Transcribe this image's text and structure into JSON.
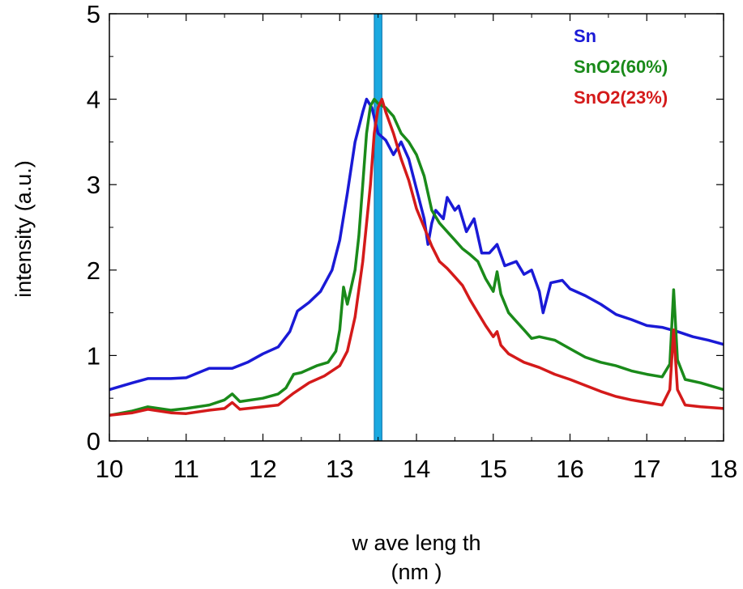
{
  "chart_data": {
    "type": "line",
    "xlabel": "wavelength (nm)",
    "xlabel_lines": [
      "w ave leng th",
      "(nm )"
    ],
    "ylabel": "intensity (a.u.)",
    "xlim": [
      10,
      18
    ],
    "ylim": [
      0,
      5
    ],
    "x_ticks": [
      10,
      11,
      12,
      13,
      14,
      15,
      16,
      17,
      18
    ],
    "y_ticks": [
      0,
      1,
      2,
      3,
      4,
      5
    ],
    "grid": false,
    "legend_position": "top-right",
    "highlight_band": {
      "x_start": 13.45,
      "x_end": 13.55,
      "color": "#1ba9e0"
    },
    "series": [
      {
        "name": "Sn",
        "color": "#1a1ad6",
        "points": [
          [
            10.0,
            0.6
          ],
          [
            10.3,
            0.68
          ],
          [
            10.5,
            0.73
          ],
          [
            10.8,
            0.73
          ],
          [
            11.0,
            0.74
          ],
          [
            11.3,
            0.85
          ],
          [
            11.6,
            0.85
          ],
          [
            11.8,
            0.92
          ],
          [
            12.0,
            1.02
          ],
          [
            12.2,
            1.1
          ],
          [
            12.35,
            1.28
          ],
          [
            12.45,
            1.52
          ],
          [
            12.6,
            1.62
          ],
          [
            12.75,
            1.75
          ],
          [
            12.9,
            2.0
          ],
          [
            13.0,
            2.35
          ],
          [
            13.1,
            2.9
          ],
          [
            13.2,
            3.5
          ],
          [
            13.3,
            3.85
          ],
          [
            13.35,
            4.0
          ],
          [
            13.42,
            3.9
          ],
          [
            13.5,
            3.6
          ],
          [
            13.6,
            3.52
          ],
          [
            13.7,
            3.35
          ],
          [
            13.8,
            3.5
          ],
          [
            13.9,
            3.3
          ],
          [
            14.0,
            2.95
          ],
          [
            14.1,
            2.6
          ],
          [
            14.15,
            2.3
          ],
          [
            14.2,
            2.55
          ],
          [
            14.25,
            2.7
          ],
          [
            14.35,
            2.6
          ],
          [
            14.4,
            2.85
          ],
          [
            14.5,
            2.7
          ],
          [
            14.55,
            2.75
          ],
          [
            14.65,
            2.45
          ],
          [
            14.75,
            2.6
          ],
          [
            14.85,
            2.2
          ],
          [
            14.95,
            2.2
          ],
          [
            15.05,
            2.3
          ],
          [
            15.15,
            2.05
          ],
          [
            15.3,
            2.1
          ],
          [
            15.4,
            1.95
          ],
          [
            15.5,
            2.0
          ],
          [
            15.6,
            1.75
          ],
          [
            15.65,
            1.5
          ],
          [
            15.75,
            1.85
          ],
          [
            15.9,
            1.88
          ],
          [
            16.0,
            1.78
          ],
          [
            16.2,
            1.7
          ],
          [
            16.4,
            1.6
          ],
          [
            16.6,
            1.48
          ],
          [
            16.8,
            1.42
          ],
          [
            17.0,
            1.35
          ],
          [
            17.2,
            1.33
          ],
          [
            17.4,
            1.28
          ],
          [
            17.6,
            1.22
          ],
          [
            17.8,
            1.18
          ],
          [
            18.0,
            1.13
          ]
        ]
      },
      {
        "name": "SnO2(60%)",
        "color": "#1a8a1a",
        "points": [
          [
            10.0,
            0.3
          ],
          [
            10.3,
            0.35
          ],
          [
            10.5,
            0.4
          ],
          [
            10.8,
            0.36
          ],
          [
            11.0,
            0.38
          ],
          [
            11.3,
            0.42
          ],
          [
            11.5,
            0.48
          ],
          [
            11.6,
            0.55
          ],
          [
            11.7,
            0.46
          ],
          [
            12.0,
            0.5
          ],
          [
            12.2,
            0.55
          ],
          [
            12.3,
            0.62
          ],
          [
            12.4,
            0.78
          ],
          [
            12.5,
            0.8
          ],
          [
            12.7,
            0.88
          ],
          [
            12.85,
            0.92
          ],
          [
            12.95,
            1.05
          ],
          [
            13.0,
            1.3
          ],
          [
            13.05,
            1.8
          ],
          [
            13.1,
            1.6
          ],
          [
            13.15,
            1.8
          ],
          [
            13.2,
            2.0
          ],
          [
            13.25,
            2.4
          ],
          [
            13.3,
            3.0
          ],
          [
            13.35,
            3.6
          ],
          [
            13.4,
            3.92
          ],
          [
            13.45,
            4.0
          ],
          [
            13.5,
            3.95
          ],
          [
            13.6,
            3.9
          ],
          [
            13.7,
            3.8
          ],
          [
            13.8,
            3.6
          ],
          [
            13.9,
            3.5
          ],
          [
            14.0,
            3.35
          ],
          [
            14.1,
            3.1
          ],
          [
            14.2,
            2.7
          ],
          [
            14.3,
            2.55
          ],
          [
            14.4,
            2.45
          ],
          [
            14.5,
            2.35
          ],
          [
            14.6,
            2.25
          ],
          [
            14.7,
            2.18
          ],
          [
            14.8,
            2.1
          ],
          [
            14.9,
            1.9
          ],
          [
            15.0,
            1.75
          ],
          [
            15.05,
            1.98
          ],
          [
            15.1,
            1.72
          ],
          [
            15.2,
            1.5
          ],
          [
            15.3,
            1.4
          ],
          [
            15.4,
            1.3
          ],
          [
            15.5,
            1.2
          ],
          [
            15.6,
            1.22
          ],
          [
            15.8,
            1.18
          ],
          [
            16.0,
            1.08
          ],
          [
            16.2,
            0.98
          ],
          [
            16.4,
            0.92
          ],
          [
            16.6,
            0.88
          ],
          [
            16.8,
            0.82
          ],
          [
            17.0,
            0.78
          ],
          [
            17.2,
            0.75
          ],
          [
            17.3,
            0.9
          ],
          [
            17.35,
            1.77
          ],
          [
            17.4,
            0.95
          ],
          [
            17.5,
            0.72
          ],
          [
            17.7,
            0.68
          ],
          [
            18.0,
            0.6
          ]
        ]
      },
      {
        "name": "SnO2(23%)",
        "color": "#d41a1a",
        "points": [
          [
            10.0,
            0.3
          ],
          [
            10.3,
            0.33
          ],
          [
            10.5,
            0.37
          ],
          [
            10.8,
            0.33
          ],
          [
            11.0,
            0.32
          ],
          [
            11.3,
            0.36
          ],
          [
            11.5,
            0.38
          ],
          [
            11.6,
            0.45
          ],
          [
            11.7,
            0.37
          ],
          [
            12.0,
            0.4
          ],
          [
            12.2,
            0.42
          ],
          [
            12.4,
            0.56
          ],
          [
            12.6,
            0.68
          ],
          [
            12.8,
            0.76
          ],
          [
            13.0,
            0.88
          ],
          [
            13.1,
            1.05
          ],
          [
            13.2,
            1.45
          ],
          [
            13.3,
            2.1
          ],
          [
            13.4,
            3.0
          ],
          [
            13.45,
            3.6
          ],
          [
            13.5,
            3.9
          ],
          [
            13.55,
            4.0
          ],
          [
            13.6,
            3.85
          ],
          [
            13.7,
            3.6
          ],
          [
            13.8,
            3.3
          ],
          [
            13.9,
            3.05
          ],
          [
            14.0,
            2.72
          ],
          [
            14.1,
            2.5
          ],
          [
            14.2,
            2.28
          ],
          [
            14.3,
            2.1
          ],
          [
            14.4,
            2.02
          ],
          [
            14.5,
            1.92
          ],
          [
            14.6,
            1.82
          ],
          [
            14.7,
            1.65
          ],
          [
            14.8,
            1.5
          ],
          [
            14.9,
            1.35
          ],
          [
            15.0,
            1.22
          ],
          [
            15.05,
            1.28
          ],
          [
            15.1,
            1.12
          ],
          [
            15.2,
            1.02
          ],
          [
            15.4,
            0.92
          ],
          [
            15.6,
            0.86
          ],
          [
            15.8,
            0.78
          ],
          [
            16.0,
            0.72
          ],
          [
            16.2,
            0.65
          ],
          [
            16.4,
            0.58
          ],
          [
            16.6,
            0.52
          ],
          [
            16.8,
            0.48
          ],
          [
            17.0,
            0.45
          ],
          [
            17.2,
            0.42
          ],
          [
            17.3,
            0.6
          ],
          [
            17.35,
            1.3
          ],
          [
            17.4,
            0.6
          ],
          [
            17.5,
            0.42
          ],
          [
            17.7,
            0.4
          ],
          [
            18.0,
            0.38
          ]
        ]
      }
    ]
  }
}
